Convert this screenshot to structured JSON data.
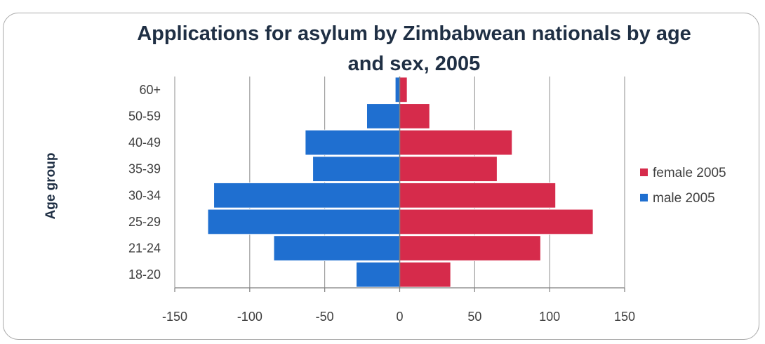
{
  "chart_data": {
    "type": "bar",
    "orientation": "horizontal",
    "title": "Applications for asylum by Zimbabwean nationals by age and sex, 2005",
    "title_lines": [
      "Applications for asylum by Zimbabwean nationals by age",
      "and sex, 2005"
    ],
    "ylabel": "Age group",
    "xlabel": "",
    "xlim": [
      -150,
      150
    ],
    "x_ticks": [
      -150,
      -100,
      -50,
      0,
      50,
      100,
      150
    ],
    "grid": true,
    "legend_position": "right",
    "categories": [
      "18-20",
      "21-24",
      "25-29",
      "30-34",
      "35-39",
      "40-49",
      "50-59",
      "60+"
    ],
    "series": [
      {
        "name": "female 2005",
        "color": "#d62b4b",
        "values": [
          34,
          94,
          129,
          104,
          65,
          75,
          20,
          5
        ]
      },
      {
        "name": "male 2005",
        "color": "#1f6fd0",
        "values": [
          -29,
          -84,
          -128,
          -124,
          -58,
          -63,
          -22,
          -3
        ]
      }
    ]
  }
}
